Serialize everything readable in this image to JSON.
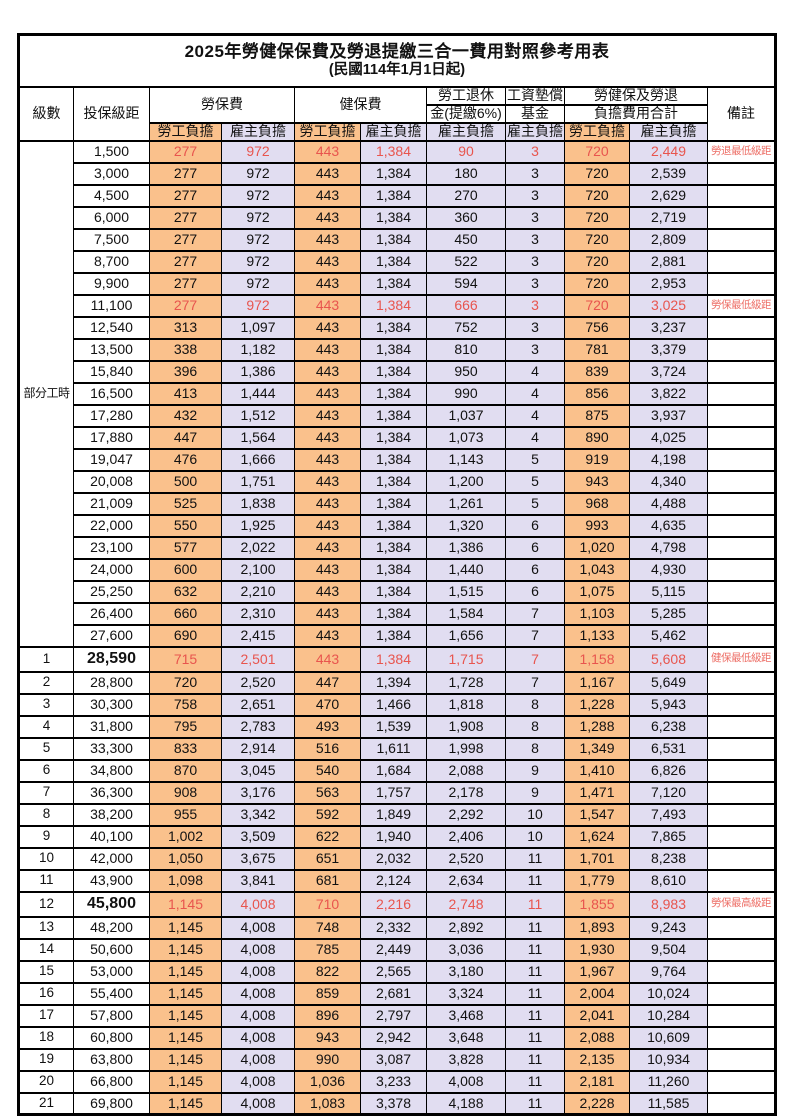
{
  "colors": {
    "employee_bg": "#FAC18C",
    "employer_bg": "#E1DDF1",
    "red_value": "#E8554E",
    "red_remark": "#ED6E66",
    "border": "#000000"
  },
  "table": {
    "title": "2025年勞健保保費及勞退提繳三合一費用對照參考用表",
    "subtitle": "(民國114年1月1日起)",
    "header": {
      "level": "級數",
      "bracket": "投保級距",
      "labor": "勞保費",
      "health": "健保費",
      "pension_l1": "勞工退休",
      "pension_l2": "金(提繳6%)",
      "wage_l1": "工資墊償",
      "wage_l2": "基金",
      "total_l1": "勞健保及勞退",
      "total_l2": "負擔費用合計",
      "employee": "勞工負擔",
      "employer": "雇主負擔",
      "remark": "備註"
    },
    "group_label": "部分工時",
    "part_time_span": 23,
    "rows": [
      {
        "lv": "",
        "bk": "1,500",
        "v": [
          "277",
          "972",
          "443",
          "1,384",
          "90",
          "3",
          "720",
          "2,449"
        ],
        "rm": "勞退最低級距",
        "red": true
      },
      {
        "lv": "",
        "bk": "3,000",
        "v": [
          "277",
          "972",
          "443",
          "1,384",
          "180",
          "3",
          "720",
          "2,539"
        ],
        "rm": ""
      },
      {
        "lv": "",
        "bk": "4,500",
        "v": [
          "277",
          "972",
          "443",
          "1,384",
          "270",
          "3",
          "720",
          "2,629"
        ],
        "rm": ""
      },
      {
        "lv": "",
        "bk": "6,000",
        "v": [
          "277",
          "972",
          "443",
          "1,384",
          "360",
          "3",
          "720",
          "2,719"
        ],
        "rm": ""
      },
      {
        "lv": "",
        "bk": "7,500",
        "v": [
          "277",
          "972",
          "443",
          "1,384",
          "450",
          "3",
          "720",
          "2,809"
        ],
        "rm": ""
      },
      {
        "lv": "",
        "bk": "8,700",
        "v": [
          "277",
          "972",
          "443",
          "1,384",
          "522",
          "3",
          "720",
          "2,881"
        ],
        "rm": ""
      },
      {
        "lv": "",
        "bk": "9,900",
        "v": [
          "277",
          "972",
          "443",
          "1,384",
          "594",
          "3",
          "720",
          "2,953"
        ],
        "rm": ""
      },
      {
        "lv": "",
        "bk": "11,100",
        "v": [
          "277",
          "972",
          "443",
          "1,384",
          "666",
          "3",
          "720",
          "3,025"
        ],
        "rm": "勞保最低級距",
        "red": true
      },
      {
        "lv": "",
        "bk": "12,540",
        "v": [
          "313",
          "1,097",
          "443",
          "1,384",
          "752",
          "3",
          "756",
          "3,237"
        ],
        "rm": ""
      },
      {
        "lv": "",
        "bk": "13,500",
        "v": [
          "338",
          "1,182",
          "443",
          "1,384",
          "810",
          "3",
          "781",
          "3,379"
        ],
        "rm": ""
      },
      {
        "lv": "",
        "bk": "15,840",
        "v": [
          "396",
          "1,386",
          "443",
          "1,384",
          "950",
          "4",
          "839",
          "3,724"
        ],
        "rm": ""
      },
      {
        "lv": "",
        "bk": "16,500",
        "v": [
          "413",
          "1,444",
          "443",
          "1,384",
          "990",
          "4",
          "856",
          "3,822"
        ],
        "rm": ""
      },
      {
        "lv": "",
        "bk": "17,280",
        "v": [
          "432",
          "1,512",
          "443",
          "1,384",
          "1,037",
          "4",
          "875",
          "3,937"
        ],
        "rm": ""
      },
      {
        "lv": "",
        "bk": "17,880",
        "v": [
          "447",
          "1,564",
          "443",
          "1,384",
          "1,073",
          "4",
          "890",
          "4,025"
        ],
        "rm": ""
      },
      {
        "lv": "",
        "bk": "19,047",
        "v": [
          "476",
          "1,666",
          "443",
          "1,384",
          "1,143",
          "5",
          "919",
          "4,198"
        ],
        "rm": ""
      },
      {
        "lv": "",
        "bk": "20,008",
        "v": [
          "500",
          "1,751",
          "443",
          "1,384",
          "1,200",
          "5",
          "943",
          "4,340"
        ],
        "rm": ""
      },
      {
        "lv": "",
        "bk": "21,009",
        "v": [
          "525",
          "1,838",
          "443",
          "1,384",
          "1,261",
          "5",
          "968",
          "4,488"
        ],
        "rm": ""
      },
      {
        "lv": "",
        "bk": "22,000",
        "v": [
          "550",
          "1,925",
          "443",
          "1,384",
          "1,320",
          "6",
          "993",
          "4,635"
        ],
        "rm": ""
      },
      {
        "lv": "",
        "bk": "23,100",
        "v": [
          "577",
          "2,022",
          "443",
          "1,384",
          "1,386",
          "6",
          "1,020",
          "4,798"
        ],
        "rm": ""
      },
      {
        "lv": "",
        "bk": "24,000",
        "v": [
          "600",
          "2,100",
          "443",
          "1,384",
          "1,440",
          "6",
          "1,043",
          "4,930"
        ],
        "rm": ""
      },
      {
        "lv": "",
        "bk": "25,250",
        "v": [
          "632",
          "2,210",
          "443",
          "1,384",
          "1,515",
          "6",
          "1,075",
          "5,115"
        ],
        "rm": ""
      },
      {
        "lv": "",
        "bk": "26,400",
        "v": [
          "660",
          "2,310",
          "443",
          "1,384",
          "1,584",
          "7",
          "1,103",
          "5,285"
        ],
        "rm": ""
      },
      {
        "lv": "",
        "bk": "27,600",
        "v": [
          "690",
          "2,415",
          "443",
          "1,384",
          "1,656",
          "7",
          "1,133",
          "5,462"
        ],
        "rm": ""
      },
      {
        "lv": "1",
        "bk": "28,590",
        "v": [
          "715",
          "2,501",
          "443",
          "1,384",
          "1,715",
          "7",
          "1,158",
          "5,608"
        ],
        "rm": "健保最低級距",
        "red": true,
        "big": true
      },
      {
        "lv": "2",
        "bk": "28,800",
        "v": [
          "720",
          "2,520",
          "447",
          "1,394",
          "1,728",
          "7",
          "1,167",
          "5,649"
        ],
        "rm": ""
      },
      {
        "lv": "3",
        "bk": "30,300",
        "v": [
          "758",
          "2,651",
          "470",
          "1,466",
          "1,818",
          "8",
          "1,228",
          "5,943"
        ],
        "rm": ""
      },
      {
        "lv": "4",
        "bk": "31,800",
        "v": [
          "795",
          "2,783",
          "493",
          "1,539",
          "1,908",
          "8",
          "1,288",
          "6,238"
        ],
        "rm": ""
      },
      {
        "lv": "5",
        "bk": "33,300",
        "v": [
          "833",
          "2,914",
          "516",
          "1,611",
          "1,998",
          "8",
          "1,349",
          "6,531"
        ],
        "rm": ""
      },
      {
        "lv": "6",
        "bk": "34,800",
        "v": [
          "870",
          "3,045",
          "540",
          "1,684",
          "2,088",
          "9",
          "1,410",
          "6,826"
        ],
        "rm": ""
      },
      {
        "lv": "7",
        "bk": "36,300",
        "v": [
          "908",
          "3,176",
          "563",
          "1,757",
          "2,178",
          "9",
          "1,471",
          "7,120"
        ],
        "rm": ""
      },
      {
        "lv": "8",
        "bk": "38,200",
        "v": [
          "955",
          "3,342",
          "592",
          "1,849",
          "2,292",
          "10",
          "1,547",
          "7,493"
        ],
        "rm": ""
      },
      {
        "lv": "9",
        "bk": "40,100",
        "v": [
          "1,002",
          "3,509",
          "622",
          "1,940",
          "2,406",
          "10",
          "1,624",
          "7,865"
        ],
        "rm": ""
      },
      {
        "lv": "10",
        "bk": "42,000",
        "v": [
          "1,050",
          "3,675",
          "651",
          "2,032",
          "2,520",
          "11",
          "1,701",
          "8,238"
        ],
        "rm": ""
      },
      {
        "lv": "11",
        "bk": "43,900",
        "v": [
          "1,098",
          "3,841",
          "681",
          "2,124",
          "2,634",
          "11",
          "1,779",
          "8,610"
        ],
        "rm": ""
      },
      {
        "lv": "12",
        "bk": "45,800",
        "v": [
          "1,145",
          "4,008",
          "710",
          "2,216",
          "2,748",
          "11",
          "1,855",
          "8,983"
        ],
        "rm": "勞保最高級距",
        "red": true,
        "big": true
      },
      {
        "lv": "13",
        "bk": "48,200",
        "v": [
          "1,145",
          "4,008",
          "748",
          "2,332",
          "2,892",
          "11",
          "1,893",
          "9,243"
        ],
        "rm": ""
      },
      {
        "lv": "14",
        "bk": "50,600",
        "v": [
          "1,145",
          "4,008",
          "785",
          "2,449",
          "3,036",
          "11",
          "1,930",
          "9,504"
        ],
        "rm": ""
      },
      {
        "lv": "15",
        "bk": "53,000",
        "v": [
          "1,145",
          "4,008",
          "822",
          "2,565",
          "3,180",
          "11",
          "1,967",
          "9,764"
        ],
        "rm": ""
      },
      {
        "lv": "16",
        "bk": "55,400",
        "v": [
          "1,145",
          "4,008",
          "859",
          "2,681",
          "3,324",
          "11",
          "2,004",
          "10,024"
        ],
        "rm": ""
      },
      {
        "lv": "17",
        "bk": "57,800",
        "v": [
          "1,145",
          "4,008",
          "896",
          "2,797",
          "3,468",
          "11",
          "2,041",
          "10,284"
        ],
        "rm": ""
      },
      {
        "lv": "18",
        "bk": "60,800",
        "v": [
          "1,145",
          "4,008",
          "943",
          "2,942",
          "3,648",
          "11",
          "2,088",
          "10,609"
        ],
        "rm": ""
      },
      {
        "lv": "19",
        "bk": "63,800",
        "v": [
          "1,145",
          "4,008",
          "990",
          "3,087",
          "3,828",
          "11",
          "2,135",
          "10,934"
        ],
        "rm": ""
      },
      {
        "lv": "20",
        "bk": "66,800",
        "v": [
          "1,145",
          "4,008",
          "1,036",
          "3,233",
          "4,008",
          "11",
          "2,181",
          "11,260"
        ],
        "rm": ""
      },
      {
        "lv": "21",
        "bk": "69,800",
        "v": [
          "1,145",
          "4,008",
          "1,083",
          "3,378",
          "4,188",
          "11",
          "2,228",
          "11,585"
        ],
        "rm": ""
      }
    ]
  }
}
